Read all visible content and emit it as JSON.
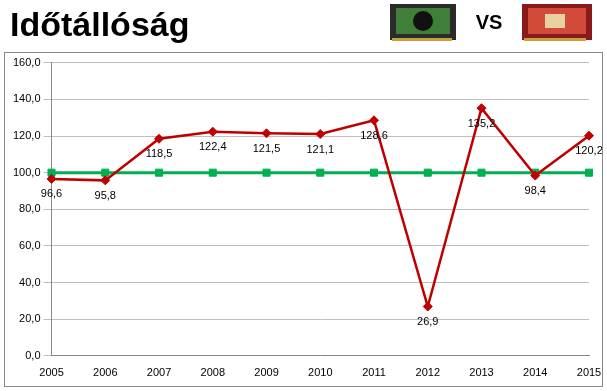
{
  "chart_data": {
    "type": "line",
    "title": "Időtállóság",
    "annotations": [
      "VS"
    ],
    "categories": [
      "2005",
      "2006",
      "2007",
      "2008",
      "2009",
      "2010",
      "2011",
      "2012",
      "2013",
      "2014",
      "2015"
    ],
    "series": [
      {
        "color": "#c00000",
        "marker": "diamond",
        "data_labels": true,
        "values": [
          96.6,
          95.8,
          118.5,
          122.4,
          121.5,
          121.1,
          128.6,
          26.9,
          135.2,
          98.4,
          120.2
        ],
        "value_labels": [
          "96,6",
          "95,8",
          "118,5",
          "122,4",
          "121,5",
          "121,1",
          "128,6",
          "26,9",
          "135,2",
          "98,4",
          "120,2"
        ]
      },
      {
        "color": "#00b050",
        "marker": "square",
        "values": [
          100,
          100,
          100,
          100,
          100,
          100,
          100,
          100,
          100,
          100,
          100
        ]
      }
    ],
    "ylim": [
      0,
      160
    ],
    "yticks": [
      {
        "value": 0,
        "label": "0,0"
      },
      {
        "value": 20,
        "label": "20,0"
      },
      {
        "value": 40,
        "label": "40,0"
      },
      {
        "value": 60,
        "label": "60,0"
      },
      {
        "value": 80,
        "label": "80,0"
      },
      {
        "value": 100,
        "label": "100,0"
      },
      {
        "value": 120,
        "label": "120,0"
      },
      {
        "value": 140,
        "label": "140,0"
      },
      {
        "value": 160,
        "label": "160,0"
      }
    ],
    "grid": true
  }
}
